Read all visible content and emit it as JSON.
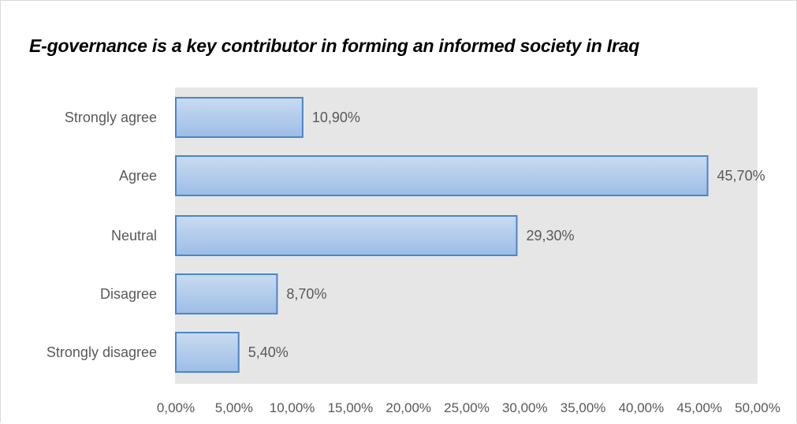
{
  "chart_data": {
    "type": "bar",
    "orientation": "horizontal",
    "title": "E-governance is a key contributor in forming an informed society in Iraq",
    "categories": [
      "Strongly agree",
      "Agree",
      "Neutral",
      "Disagree",
      "Strongly disagree"
    ],
    "values": [
      10.9,
      45.7,
      29.3,
      8.7,
      5.4
    ],
    "value_labels": [
      "10,90%",
      "45,70%",
      "29,30%",
      "8,70%",
      "5,40%"
    ],
    "x_ticks": [
      "0,00%",
      "5,00%",
      "10,00%",
      "15,00%",
      "20,00%",
      "25,00%",
      "30,00%",
      "35,00%",
      "40,00%",
      "45,00%",
      "50,00%"
    ],
    "xlim": [
      0,
      50
    ],
    "xlabel": "",
    "ylabel": "",
    "grid": false,
    "legend": "none",
    "colors": {
      "bar_fill_top": "#c9dbf1",
      "bar_fill_bottom": "#9dbde6",
      "bar_border": "#4a86c8",
      "plot_background": "#e6e6e6"
    }
  }
}
